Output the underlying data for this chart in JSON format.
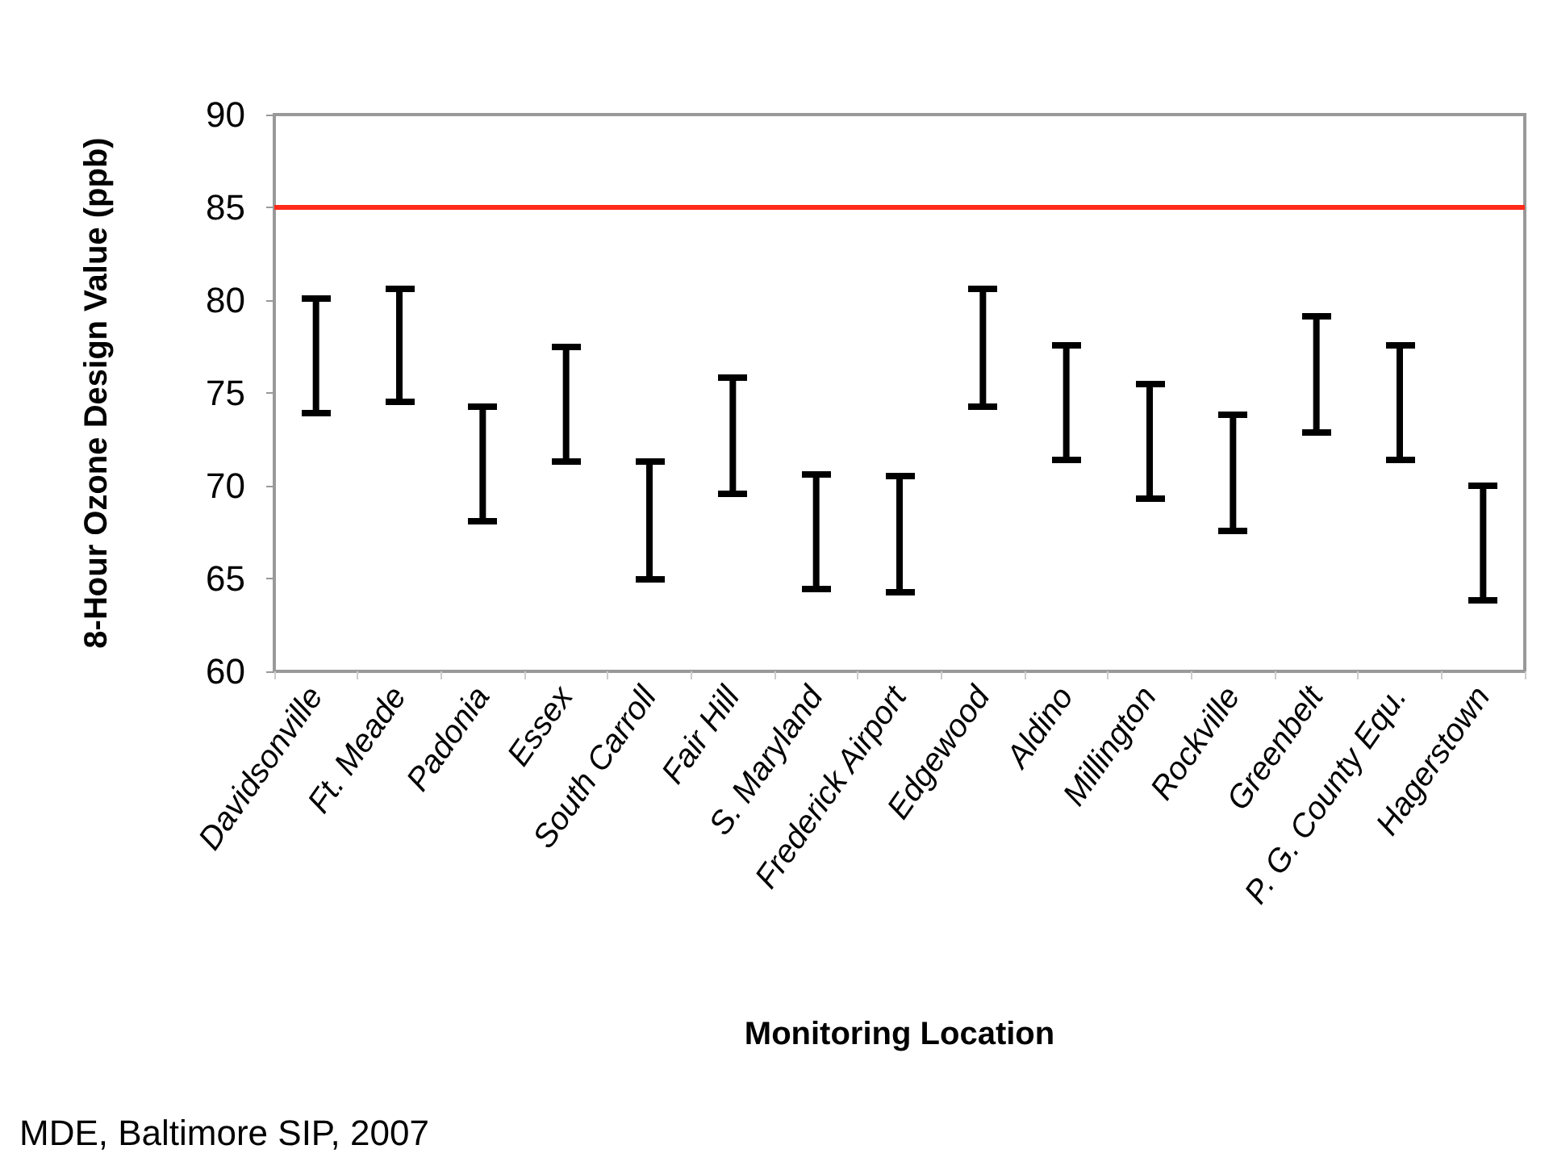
{
  "chart_data": {
    "type": "bar",
    "ylabel": "8-Hour Ozone Design Value (ppb)",
    "xlabel": "Monitoring Location",
    "annotations": [
      "MDE, Baltimore SIP, 2007"
    ],
    "categories": [
      "Davidsonville",
      "Ft. Meade",
      "Padonia",
      "Essex",
      "South Carroll",
      "Fair Hill",
      "S. Maryland",
      "Frederick Airport",
      "Edgewood",
      "Aldino",
      "Millington",
      "Rockville",
      "Greenbelt",
      "P. G. County Equ.",
      "Hagerstown"
    ],
    "base": [
      73.9,
      74.5,
      68.1,
      71.3,
      65.0,
      69.6,
      64.4,
      64.3,
      74.3,
      71.4,
      69.3,
      67.6,
      72.9,
      71.4,
      63.8
    ],
    "values": [
      6.2,
      6.1,
      6.2,
      6.2,
      6.3,
      6.2,
      6.2,
      6.2,
      6.3,
      6.2,
      6.2,
      6.2,
      6.2,
      6.2,
      6.2
    ],
    "color": "#000000",
    "ylim": [
      60,
      90
    ],
    "yticks": [
      60,
      65,
      70,
      75,
      80,
      85,
      90
    ],
    "ref_lines": [
      {
        "axis": "y",
        "value": 85,
        "color": "#ff2a1a"
      }
    ]
  }
}
